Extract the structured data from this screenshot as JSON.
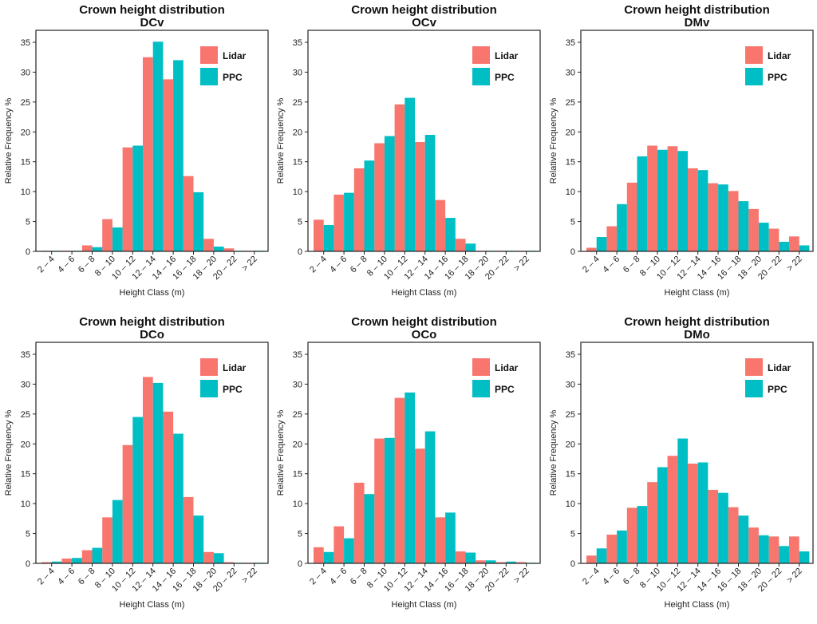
{
  "colors": {
    "lidar": "#F8766D",
    "ppc": "#00BFC4"
  },
  "chart_data": [
    {
      "type": "bar",
      "title": "Crown height distribution",
      "subtitle": "DCv",
      "xlabel": "Height Class (m)",
      "ylabel": "Relative Frequency %",
      "ylim": [
        0,
        37
      ],
      "yticks": [
        0,
        5,
        10,
        15,
        20,
        25,
        30,
        35
      ],
      "categories": [
        "2 – 4",
        "4 – 6",
        "6 – 8",
        "8 – 10",
        "10 – 12",
        "12 – 14",
        "14 – 16",
        "16 – 18",
        "18 – 20",
        "20 – 22",
        "> 22"
      ],
      "legend": "top-right",
      "series": [
        {
          "name": "Lidar",
          "values": [
            0.1,
            0.1,
            1.0,
            5.4,
            17.4,
            32.5,
            28.8,
            12.6,
            2.1,
            0.5,
            0.1
          ]
        },
        {
          "name": "PPC",
          "values": [
            0.1,
            0.1,
            0.7,
            4.0,
            17.7,
            35.1,
            32.0,
            9.9,
            0.8,
            0.1,
            0.1
          ]
        }
      ]
    },
    {
      "type": "bar",
      "title": "Crown height distribution",
      "subtitle": "OCv",
      "xlabel": "Height Class (m)",
      "ylabel": "Relative Frequency %",
      "ylim": [
        0,
        37
      ],
      "yticks": [
        0,
        5,
        10,
        15,
        20,
        25,
        30,
        35
      ],
      "categories": [
        "2 – 4",
        "4 – 6",
        "6 – 8",
        "8 – 10",
        "10 – 12",
        "12 – 14",
        "14 – 16",
        "16 – 18",
        "18 – 20",
        "20 – 22",
        "> 22"
      ],
      "legend": "top-right",
      "series": [
        {
          "name": "Lidar",
          "values": [
            5.3,
            9.5,
            13.9,
            18.1,
            24.6,
            18.3,
            8.6,
            2.1,
            0.1,
            0.1,
            0.1
          ]
        },
        {
          "name": "PPC",
          "values": [
            4.4,
            9.8,
            15.2,
            19.3,
            25.7,
            19.5,
            5.6,
            1.3,
            0.1,
            0.1,
            0.1
          ]
        }
      ]
    },
    {
      "type": "bar",
      "title": "Crown height distribution",
      "subtitle": "DMv",
      "xlabel": "Height Class (m)",
      "ylabel": "Relative Frequency %",
      "ylim": [
        0,
        37
      ],
      "yticks": [
        0,
        5,
        10,
        15,
        20,
        25,
        30,
        35
      ],
      "categories": [
        "2 – 4",
        "4 – 6",
        "6 – 8",
        "8 – 10",
        "10 – 12",
        "12 – 14",
        "14 – 16",
        "16 – 18",
        "18 – 20",
        "20 – 22",
        "> 22"
      ],
      "legend": "top-right",
      "series": [
        {
          "name": "Lidar",
          "values": [
            0.6,
            4.2,
            11.5,
            17.7,
            17.6,
            13.9,
            11.4,
            10.1,
            7.1,
            3.8,
            2.5
          ]
        },
        {
          "name": "PPC",
          "values": [
            2.4,
            7.9,
            15.9,
            17.0,
            16.8,
            13.6,
            11.2,
            8.4,
            4.8,
            1.6,
            1.0
          ]
        }
      ]
    },
    {
      "type": "bar",
      "title": "Crown height distribution",
      "subtitle": "DCo",
      "xlabel": "Height Class (m)",
      "ylabel": "Relative Frequency %",
      "ylim": [
        0,
        37
      ],
      "yticks": [
        0,
        5,
        10,
        15,
        20,
        25,
        30,
        35
      ],
      "categories": [
        "2 – 4",
        "4 – 6",
        "6 – 8",
        "8 – 10",
        "10 – 12",
        "12 – 14",
        "14 – 16",
        "16 – 18",
        "18 – 20",
        "20 – 22",
        "> 22"
      ],
      "legend": "top-right",
      "series": [
        {
          "name": "Lidar",
          "values": [
            0.2,
            0.8,
            2.2,
            7.7,
            19.8,
            31.2,
            25.4,
            11.1,
            1.9,
            0.2,
            0.1
          ]
        },
        {
          "name": "PPC",
          "values": [
            0.3,
            0.9,
            2.6,
            10.6,
            24.5,
            30.2,
            21.7,
            8.0,
            1.7,
            0.1,
            0.1
          ]
        }
      ]
    },
    {
      "type": "bar",
      "title": "Crown height distribution",
      "subtitle": "OCo",
      "xlabel": "Height Class (m)",
      "ylabel": "Relative Frequency %",
      "ylim": [
        0,
        37
      ],
      "yticks": [
        0,
        5,
        10,
        15,
        20,
        25,
        30,
        35
      ],
      "categories": [
        "2 – 4",
        "4 – 6",
        "6 – 8",
        "8 – 10",
        "10 – 12",
        "12 – 14",
        "14 – 16",
        "16 – 18",
        "18 – 20",
        "20 – 22",
        "> 22"
      ],
      "legend": "top-right",
      "series": [
        {
          "name": "Lidar",
          "values": [
            2.7,
            6.2,
            13.5,
            20.9,
            27.7,
            19.2,
            7.7,
            2.0,
            0.5,
            0.2,
            0.2
          ]
        },
        {
          "name": "PPC",
          "values": [
            1.9,
            4.2,
            11.6,
            21.0,
            28.6,
            22.1,
            8.5,
            1.8,
            0.5,
            0.3,
            0.1
          ]
        }
      ]
    },
    {
      "type": "bar",
      "title": "Crown height distribution",
      "subtitle": "DMo",
      "xlabel": "Height Class (m)",
      "ylabel": "Relative Frequency %",
      "ylim": [
        0,
        37
      ],
      "yticks": [
        0,
        5,
        10,
        15,
        20,
        25,
        30,
        35
      ],
      "categories": [
        "2 – 4",
        "4 – 6",
        "6 – 8",
        "8 – 10",
        "10 – 12",
        "12 – 14",
        "14 – 16",
        "16 – 18",
        "18 – 20",
        "20 – 22",
        "> 22"
      ],
      "legend": "top-right",
      "series": [
        {
          "name": "Lidar",
          "values": [
            1.3,
            4.8,
            9.3,
            13.6,
            18.0,
            16.7,
            12.3,
            9.4,
            6.0,
            4.5,
            4.5
          ]
        },
        {
          "name": "PPC",
          "values": [
            2.5,
            5.5,
            9.6,
            16.1,
            20.9,
            16.9,
            11.8,
            8.0,
            4.7,
            2.9,
            2.0
          ]
        }
      ]
    }
  ]
}
